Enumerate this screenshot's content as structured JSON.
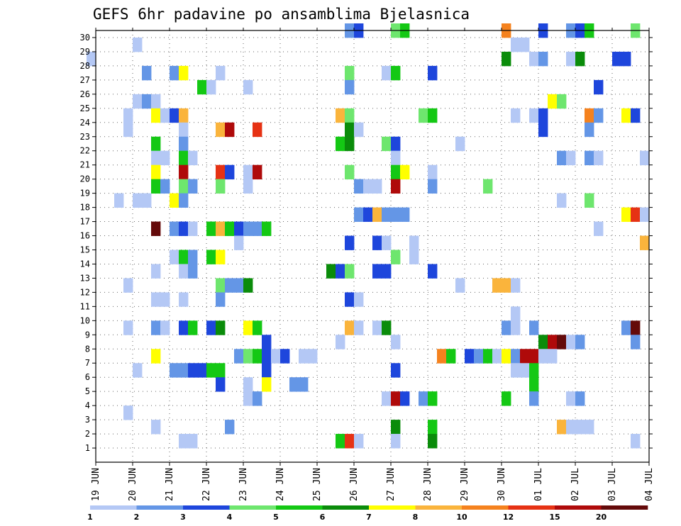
{
  "chart_data": {
    "type": "heatmap",
    "title": "GEFS 6hr padavine po ansamblima Bjelasnica",
    "y_ticks": [
      "1",
      "2",
      "3",
      "4",
      "5",
      "6",
      "7",
      "8",
      "9",
      "10",
      "11",
      "12",
      "13",
      "14",
      "15",
      "16",
      "17",
      "18",
      "19",
      "20",
      "21",
      "22",
      "23",
      "24",
      "25",
      "26",
      "27",
      "28",
      "29",
      "30"
    ],
    "x_ticks": [
      "19 JUN",
      "20 JUN",
      "21 JUN",
      "22 JUN",
      "23 JUN",
      "24 JUN",
      "25 JUN",
      "26 JUN",
      "27 JUN",
      "28 JUN",
      "29 JUN",
      "30 JUN",
      "01 JUL",
      "02 JUL",
      "03 JUL",
      "04 JUL"
    ],
    "legend_levels": [
      "1",
      "2",
      "3",
      "4",
      "5",
      "6",
      "7",
      "8",
      "10",
      "12",
      "15",
      "20"
    ],
    "legend_colors": [
      "#b4c8f5",
      "#6496e6",
      "#1e46dc",
      "#6ee66e",
      "#14c814",
      "#0a8c0a",
      "#ffff00",
      "#fab43c",
      "#f5821e",
      "#e63214",
      "#af0a0a",
      "#640a0a"
    ],
    "grid": "dotted",
    "cells": [
      [
        30,
        172,
        2
      ],
      [
        30,
        173,
        3
      ],
      [
        30,
        177,
        4
      ],
      [
        30,
        178,
        5
      ],
      [
        30,
        189,
        9
      ],
      [
        30,
        193,
        3
      ],
      [
        30,
        196,
        2
      ],
      [
        30,
        197,
        3
      ],
      [
        30,
        198,
        5
      ],
      [
        30,
        203,
        4
      ],
      [
        29,
        149,
        1
      ],
      [
        29,
        190,
        1
      ],
      [
        29,
        191,
        1
      ],
      [
        28,
        144,
        1
      ],
      [
        28,
        189,
        6
      ],
      [
        28,
        192,
        1
      ],
      [
        28,
        193,
        2
      ],
      [
        28,
        196,
        1
      ],
      [
        28,
        197,
        6
      ],
      [
        28,
        201,
        3
      ],
      [
        28,
        202,
        3
      ],
      [
        27,
        150,
        2
      ],
      [
        27,
        153,
        2
      ],
      [
        27,
        154,
        7
      ],
      [
        27,
        158,
        1
      ],
      [
        27,
        172,
        4
      ],
      [
        27,
        176,
        1
      ],
      [
        27,
        177,
        5
      ],
      [
        27,
        181,
        3
      ],
      [
        26,
        156,
        5
      ],
      [
        26,
        157,
        1
      ],
      [
        26,
        161,
        1
      ],
      [
        26,
        172,
        2
      ],
      [
        26,
        199,
        3
      ],
      [
        25,
        149,
        1
      ],
      [
        25,
        150,
        2
      ],
      [
        25,
        151,
        1
      ],
      [
        25,
        194,
        7
      ],
      [
        25,
        195,
        4
      ],
      [
        24,
        148,
        1
      ],
      [
        24,
        151,
        7
      ],
      [
        24,
        152,
        1
      ],
      [
        24,
        153,
        3
      ],
      [
        24,
        154,
        8
      ],
      [
        24,
        171,
        8
      ],
      [
        24,
        172,
        4
      ],
      [
        24,
        180,
        4
      ],
      [
        24,
        181,
        5
      ],
      [
        24,
        190,
        1
      ],
      [
        24,
        192,
        1
      ],
      [
        24,
        193,
        3
      ],
      [
        24,
        198,
        9
      ],
      [
        24,
        199,
        2
      ],
      [
        24,
        202,
        7
      ],
      [
        24,
        203,
        3
      ],
      [
        23,
        148,
        1
      ],
      [
        23,
        154,
        1
      ],
      [
        23,
        158,
        8
      ],
      [
        23,
        159,
        11
      ],
      [
        23,
        162,
        10
      ],
      [
        23,
        172,
        6
      ],
      [
        23,
        173,
        1
      ],
      [
        23,
        193,
        3
      ],
      [
        23,
        198,
        2
      ],
      [
        22,
        151,
        5
      ],
      [
        22,
        154,
        2
      ],
      [
        22,
        171,
        5
      ],
      [
        22,
        172,
        6
      ],
      [
        22,
        176,
        4
      ],
      [
        22,
        177,
        3
      ],
      [
        22,
        184,
        1
      ],
      [
        21,
        151,
        1
      ],
      [
        21,
        152,
        1
      ],
      [
        21,
        154,
        5
      ],
      [
        21,
        155,
        1
      ],
      [
        21,
        177,
        1
      ],
      [
        21,
        195,
        2
      ],
      [
        21,
        196,
        1
      ],
      [
        21,
        198,
        2
      ],
      [
        21,
        199,
        1
      ],
      [
        21,
        204,
        1
      ],
      [
        20,
        151,
        7
      ],
      [
        20,
        154,
        11
      ],
      [
        20,
        158,
        10
      ],
      [
        20,
        159,
        3
      ],
      [
        20,
        161,
        1
      ],
      [
        20,
        162,
        11
      ],
      [
        20,
        172,
        4
      ],
      [
        20,
        177,
        5
      ],
      [
        20,
        178,
        7
      ],
      [
        20,
        181,
        1
      ],
      [
        19,
        151,
        5
      ],
      [
        19,
        152,
        2
      ],
      [
        19,
        154,
        4
      ],
      [
        19,
        155,
        2
      ],
      [
        19,
        158,
        4
      ],
      [
        19,
        161,
        1
      ],
      [
        19,
        173,
        2
      ],
      [
        19,
        174,
        1
      ],
      [
        19,
        175,
        1
      ],
      [
        19,
        177,
        11
      ],
      [
        19,
        181,
        2
      ],
      [
        19,
        187,
        4
      ],
      [
        18,
        147,
        1
      ],
      [
        18,
        149,
        1
      ],
      [
        18,
        150,
        1
      ],
      [
        18,
        153,
        7
      ],
      [
        18,
        154,
        2
      ],
      [
        18,
        195,
        1
      ],
      [
        18,
        198,
        4
      ],
      [
        17,
        173,
        2
      ],
      [
        17,
        174,
        3
      ],
      [
        17,
        175,
        8
      ],
      [
        17,
        176,
        2
      ],
      [
        17,
        177,
        2
      ],
      [
        17,
        178,
        2
      ],
      [
        17,
        202,
        7
      ],
      [
        17,
        203,
        10
      ],
      [
        17,
        204,
        1
      ],
      [
        16,
        151,
        12
      ],
      [
        16,
        153,
        2
      ],
      [
        16,
        154,
        3
      ],
      [
        16,
        155,
        1
      ],
      [
        16,
        157,
        5
      ],
      [
        16,
        158,
        8
      ],
      [
        16,
        159,
        5
      ],
      [
        16,
        160,
        3
      ],
      [
        16,
        161,
        2
      ],
      [
        16,
        162,
        2
      ],
      [
        16,
        163,
        5
      ],
      [
        16,
        199,
        1
      ],
      [
        15,
        160,
        1
      ],
      [
        15,
        172,
        3
      ],
      [
        15,
        175,
        3
      ],
      [
        15,
        176,
        1
      ],
      [
        15,
        179,
        1
      ],
      [
        15,
        204,
        8
      ],
      [
        14,
        153,
        1
      ],
      [
        14,
        154,
        5
      ],
      [
        14,
        155,
        2
      ],
      [
        14,
        157,
        5
      ],
      [
        14,
        158,
        7
      ],
      [
        14,
        177,
        4
      ],
      [
        14,
        179,
        1
      ],
      [
        13,
        151,
        1
      ],
      [
        13,
        154,
        1
      ],
      [
        13,
        155,
        2
      ],
      [
        13,
        170,
        6
      ],
      [
        13,
        171,
        3
      ],
      [
        13,
        172,
        4
      ],
      [
        13,
        175,
        3
      ],
      [
        13,
        176,
        3
      ],
      [
        13,
        181,
        3
      ],
      [
        12,
        148,
        1
      ],
      [
        12,
        158,
        4
      ],
      [
        12,
        159,
        2
      ],
      [
        12,
        160,
        2
      ],
      [
        12,
        161,
        6
      ],
      [
        12,
        184,
        1
      ],
      [
        12,
        188,
        8
      ],
      [
        12,
        189,
        8
      ],
      [
        12,
        190,
        1
      ],
      [
        11,
        151,
        1
      ],
      [
        11,
        152,
        1
      ],
      [
        11,
        154,
        1
      ],
      [
        11,
        158,
        2
      ],
      [
        11,
        172,
        3
      ],
      [
        11,
        173,
        1
      ],
      [
        10,
        190,
        1
      ],
      [
        9,
        148,
        1
      ],
      [
        9,
        151,
        2
      ],
      [
        9,
        152,
        1
      ],
      [
        9,
        154,
        3
      ],
      [
        9,
        155,
        5
      ],
      [
        9,
        157,
        3
      ],
      [
        9,
        158,
        6
      ],
      [
        9,
        161,
        7
      ],
      [
        9,
        162,
        5
      ],
      [
        9,
        172,
        8
      ],
      [
        9,
        173,
        1
      ],
      [
        9,
        175,
        1
      ],
      [
        9,
        176,
        6
      ],
      [
        9,
        189,
        2
      ],
      [
        9,
        190,
        1
      ],
      [
        9,
        192,
        2
      ],
      [
        9,
        202,
        2
      ],
      [
        9,
        203,
        12
      ],
      [
        8,
        163,
        3
      ],
      [
        8,
        171,
        1
      ],
      [
        8,
        177,
        1
      ],
      [
        8,
        193,
        6
      ],
      [
        8,
        194,
        11
      ],
      [
        8,
        195,
        12
      ],
      [
        8,
        196,
        1
      ],
      [
        8,
        197,
        2
      ],
      [
        8,
        203,
        2
      ],
      [
        7,
        151,
        7
      ],
      [
        7,
        160,
        2
      ],
      [
        7,
        161,
        4
      ],
      [
        7,
        162,
        5
      ],
      [
        7,
        163,
        3
      ],
      [
        7,
        164,
        1
      ],
      [
        7,
        165,
        3
      ],
      [
        7,
        167,
        1
      ],
      [
        7,
        168,
        1
      ],
      [
        7,
        182,
        9
      ],
      [
        7,
        183,
        5
      ],
      [
        7,
        185,
        3
      ],
      [
        7,
        186,
        2
      ],
      [
        7,
        187,
        5
      ],
      [
        7,
        188,
        1
      ],
      [
        7,
        189,
        7
      ],
      [
        7,
        190,
        2
      ],
      [
        7,
        191,
        11
      ],
      [
        7,
        192,
        11
      ],
      [
        7,
        193,
        1
      ],
      [
        7,
        194,
        1
      ],
      [
        6,
        149,
        1
      ],
      [
        6,
        153,
        2
      ],
      [
        6,
        154,
        2
      ],
      [
        6,
        155,
        3
      ],
      [
        6,
        156,
        3
      ],
      [
        6,
        157,
        5
      ],
      [
        6,
        158,
        5
      ],
      [
        6,
        163,
        3
      ],
      [
        6,
        177,
        3
      ],
      [
        6,
        190,
        1
      ],
      [
        6,
        191,
        1
      ],
      [
        6,
        192,
        5
      ],
      [
        5,
        158,
        3
      ],
      [
        5,
        161,
        1
      ],
      [
        5,
        163,
        7
      ],
      [
        5,
        166,
        2
      ],
      [
        5,
        167,
        2
      ],
      [
        5,
        192,
        5
      ],
      [
        4,
        161,
        1
      ],
      [
        4,
        162,
        2
      ],
      [
        4,
        176,
        1
      ],
      [
        4,
        177,
        11
      ],
      [
        4,
        178,
        3
      ],
      [
        4,
        180,
        2
      ],
      [
        4,
        181,
        5
      ],
      [
        4,
        189,
        5
      ],
      [
        4,
        192,
        2
      ],
      [
        4,
        196,
        1
      ],
      [
        4,
        197,
        2
      ],
      [
        3,
        148,
        1
      ],
      [
        2,
        151,
        1
      ],
      [
        2,
        159,
        2
      ],
      [
        2,
        177,
        6
      ],
      [
        2,
        181,
        5
      ],
      [
        2,
        195,
        8
      ],
      [
        2,
        196,
        1
      ],
      [
        2,
        197,
        1
      ],
      [
        2,
        198,
        1
      ],
      [
        1,
        154,
        1
      ],
      [
        1,
        155,
        1
      ],
      [
        1,
        171,
        5
      ],
      [
        1,
        172,
        10
      ],
      [
        1,
        173,
        1
      ],
      [
        1,
        177,
        1
      ],
      [
        1,
        181,
        6
      ],
      [
        1,
        203,
        1
      ]
    ]
  }
}
